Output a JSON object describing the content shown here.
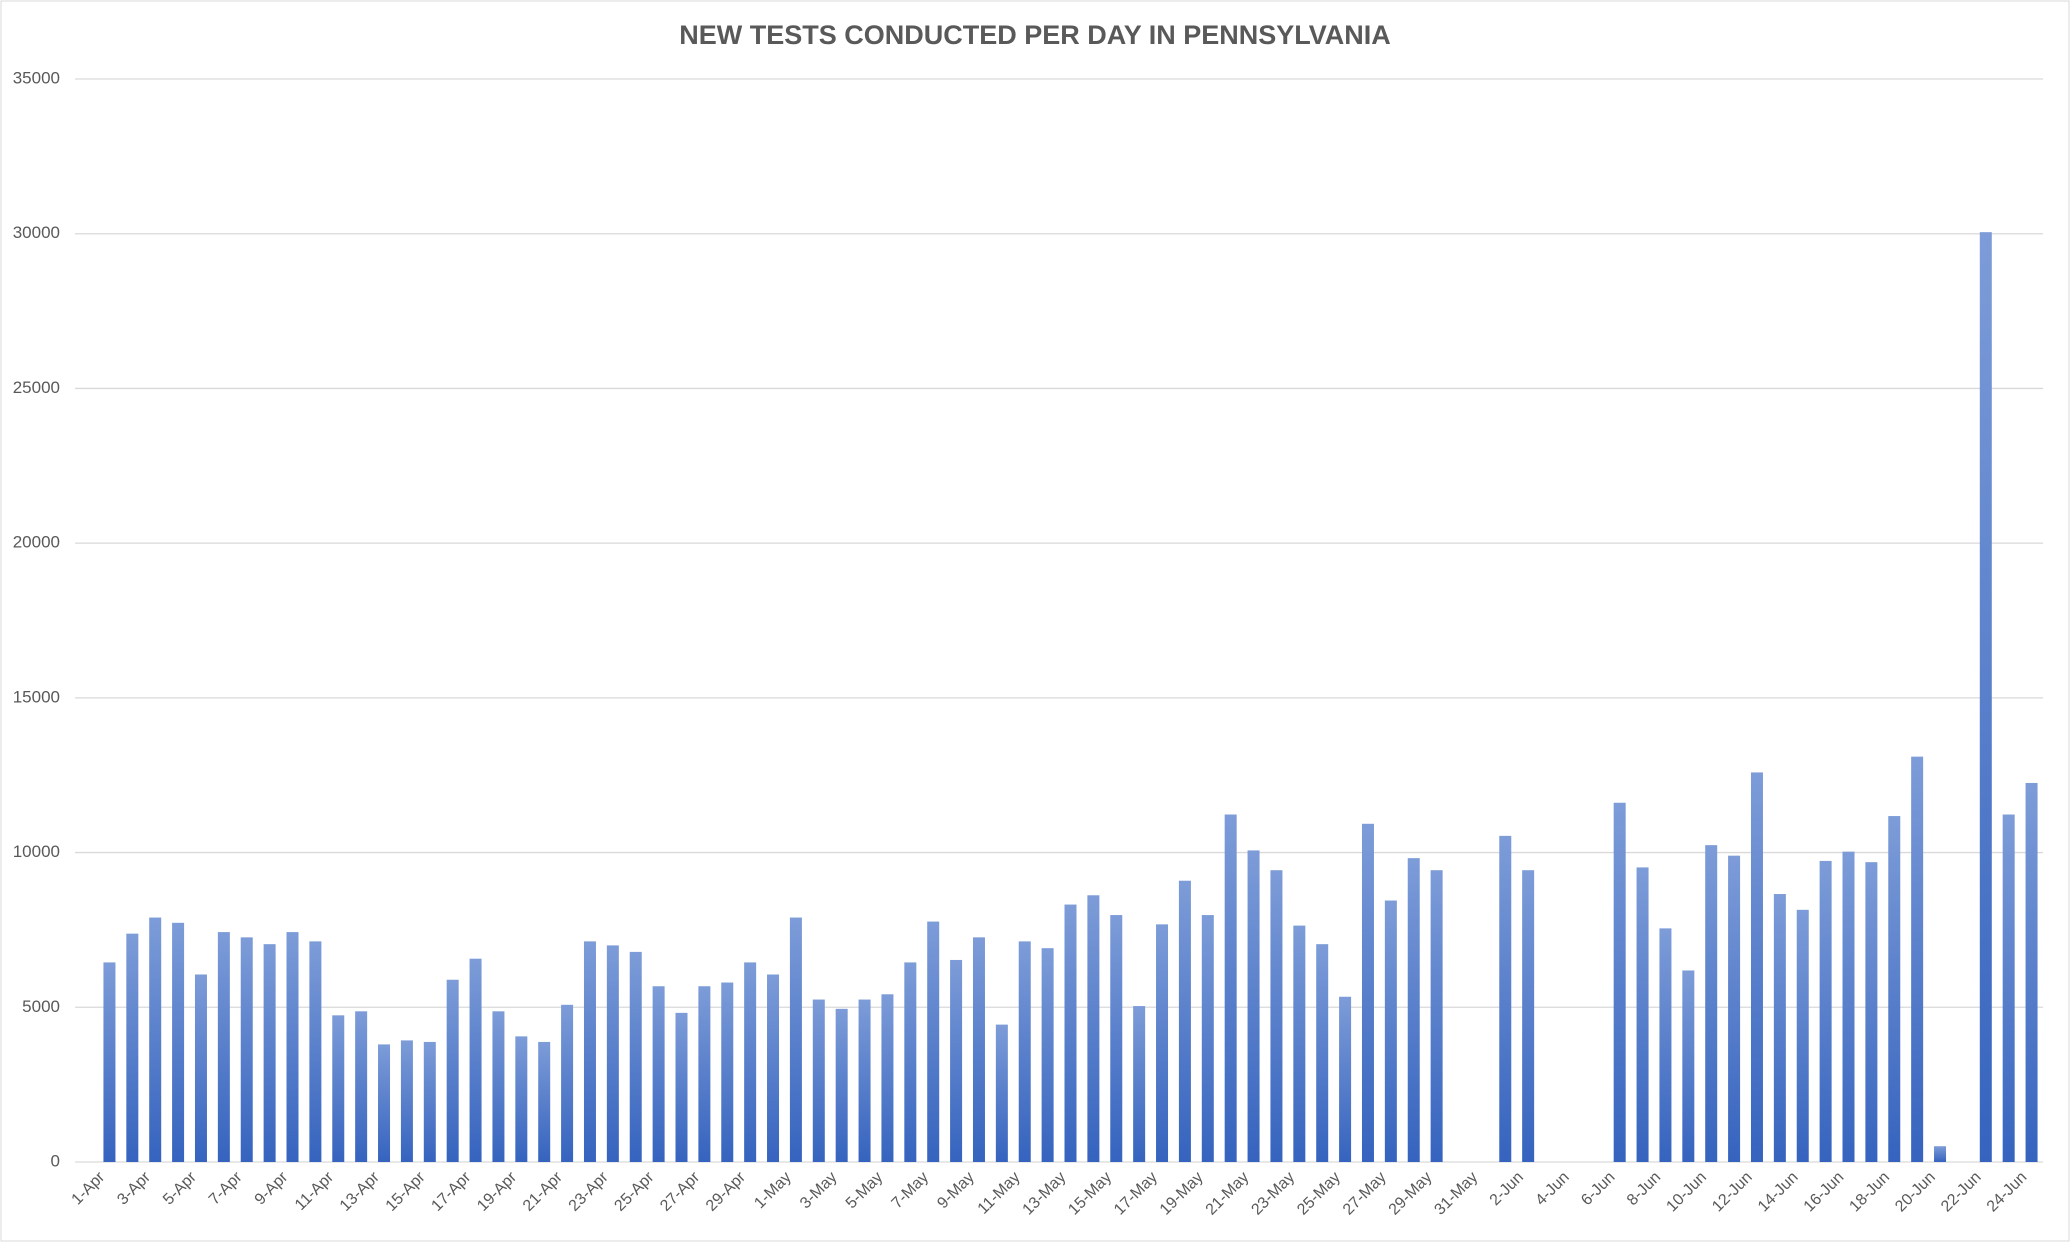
{
  "chart_data": {
    "type": "bar",
    "title": "NEW TESTS CONDUCTED PER DAY IN PENNSYLVANIA",
    "categories": [
      "1-Apr",
      null,
      "3-Apr",
      null,
      "5-Apr",
      null,
      "7-Apr",
      null,
      "9-Apr",
      null,
      "11-Apr",
      null,
      "13-Apr",
      null,
      "15-Apr",
      null,
      "17-Apr",
      null,
      "19-Apr",
      null,
      "21-Apr",
      null,
      "23-Apr",
      null,
      "25-Apr",
      null,
      "27-Apr",
      null,
      "29-Apr",
      null,
      "1-May",
      null,
      "3-May",
      null,
      "5-May",
      null,
      "7-May",
      null,
      "9-May",
      null,
      "11-May",
      null,
      "13-May",
      null,
      "15-May",
      null,
      "17-May",
      null,
      "19-May",
      null,
      "21-May",
      null,
      "23-May",
      null,
      "25-May",
      null,
      "27-May",
      null,
      "29-May",
      null,
      "31-May",
      null,
      "2-Jun",
      null,
      "4-Jun",
      null,
      "6-Jun",
      null,
      "8-Jun",
      null,
      "10-Jun",
      null,
      "12-Jun",
      null,
      "14-Jun",
      null,
      "16-Jun",
      null,
      "18-Jun",
      null,
      "20-Jun",
      null,
      "22-Jun",
      null,
      "24-Jun"
    ],
    "values": [
      6450,
      7380,
      7900,
      7730,
      6060,
      7430,
      7260,
      7040,
      7430,
      7130,
      4740,
      4870,
      3800,
      3930,
      3880,
      5890,
      6570,
      4870,
      4060,
      3880,
      5080,
      7130,
      7000,
      6790,
      5680,
      4820,
      5680,
      5800,
      6450,
      6060,
      7900,
      5250,
      4950,
      5250,
      5420,
      6450,
      7770,
      6530,
      7260,
      4440,
      7130,
      6910,
      8320,
      8620,
      7980,
      5040,
      7680,
      9090,
      7980,
      11230,
      10070,
      9430,
      7640,
      7040,
      5340,
      10930,
      8450,
      9820,
      9430,
      null,
      null,
      10540,
      9430,
      null,
      null,
      null,
      11610,
      9520,
      7550,
      6190,
      10240,
      9900,
      12590,
      8660,
      8150,
      9730,
      10030,
      9690,
      11180,
      13100,
      510,
      null,
      30050,
      11230,
      12250
    ],
    "ylim": [
      0,
      35000
    ],
    "yticks": [
      0,
      5000,
      10000,
      15000,
      20000,
      25000,
      30000,
      35000
    ],
    "grid": true,
    "color": "#4472c4"
  }
}
